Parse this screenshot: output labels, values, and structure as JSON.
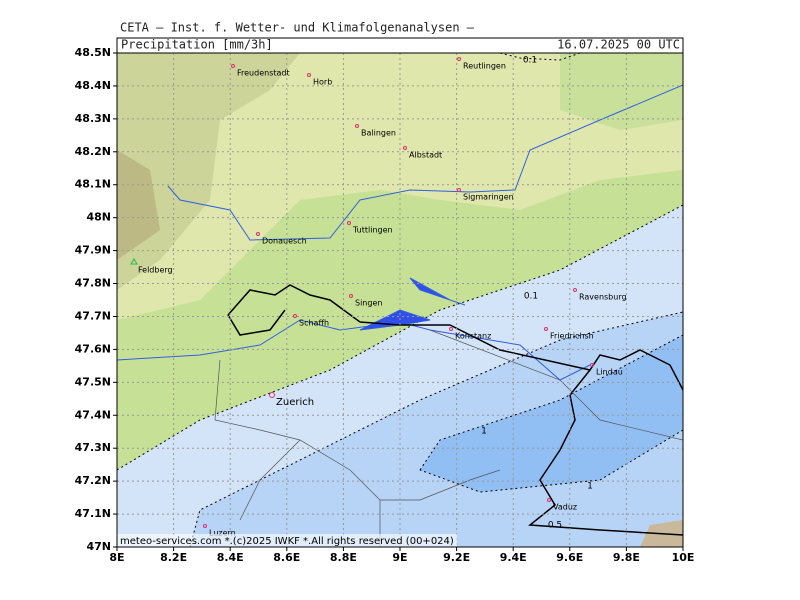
{
  "header": {
    "institute": "CETA – Inst. f. Wetter- und Klimafolgenanalysen –",
    "field": "Precipitation [mm/3h]",
    "valid_time": "16.07.2025 00 UTC"
  },
  "axes": {
    "lat_labels": [
      "48.5N",
      "48.4N",
      "48.3N",
      "48.2N",
      "48.1N",
      "48N",
      "47.9N",
      "47.8N",
      "47.7N",
      "47.6N",
      "47.5N",
      "47.4N",
      "47.3N",
      "47.2N",
      "47.1N",
      "47N"
    ],
    "lon_labels": [
      "8E",
      "8.2E",
      "8.4E",
      "8.6E",
      "8.8E",
      "9E",
      "9.2E",
      "9.4E",
      "9.6E",
      "9.8E",
      "10E"
    ]
  },
  "cities": [
    "Freudenstadt",
    "Horb",
    "Reutlingen",
    "Balingen",
    "Albstadt",
    "Sigmaringen",
    "Tuttlingen",
    "Donauesch",
    "Feldberg",
    "Singen",
    "Schaffh",
    "Ravensburg",
    "Konstanz",
    "Friedrichsh",
    "Lindau",
    "Zuerich",
    "Vaduz",
    "Luzern"
  ],
  "contour_labels": [
    "0.1",
    "0.1",
    "1",
    "1",
    "0.5"
  ],
  "footer": "meteo-services.com *.(c)2025 IWKF *.All rights reserved (00+024)"
}
